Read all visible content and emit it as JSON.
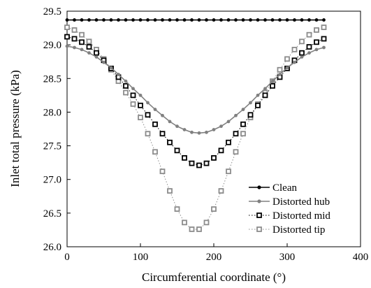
{
  "chart_data": {
    "type": "line",
    "xlabel": "Circumferential coordinate (°)",
    "ylabel": "Inlet total pressure (kPa)",
    "xlim": [
      0,
      400
    ],
    "ylim": [
      26.0,
      29.5
    ],
    "x_ticks": [
      "0",
      "100",
      "200",
      "300",
      "400"
    ],
    "y_ticks": [
      "26.0",
      "26.5",
      "27.0",
      "27.5",
      "28.0",
      "28.5",
      "29.0",
      "29.5"
    ],
    "grid": false,
    "legend_position": "bottom-right",
    "x": [
      0,
      10,
      20,
      30,
      40,
      50,
      60,
      70,
      80,
      90,
      100,
      110,
      120,
      130,
      140,
      150,
      160,
      170,
      180,
      190,
      200,
      210,
      220,
      230,
      240,
      250,
      260,
      270,
      280,
      290,
      300,
      310,
      320,
      330,
      340,
      350
    ],
    "series": [
      {
        "name": "Clean",
        "style": "solid-filled-circle",
        "color": "#000000",
        "values": [
          29.37,
          29.37,
          29.37,
          29.37,
          29.37,
          29.37,
          29.37,
          29.37,
          29.37,
          29.37,
          29.37,
          29.37,
          29.37,
          29.37,
          29.37,
          29.37,
          29.37,
          29.37,
          29.37,
          29.37,
          29.37,
          29.37,
          29.37,
          29.37,
          29.37,
          29.37,
          29.37,
          29.37,
          29.37,
          29.37,
          29.37,
          29.37,
          29.37,
          29.37,
          29.37,
          29.37
        ]
      },
      {
        "name": "Distorted hub",
        "style": "solid-filled-circle",
        "color": "#808080",
        "values": [
          28.98,
          28.96,
          28.93,
          28.88,
          28.82,
          28.74,
          28.66,
          28.56,
          28.46,
          28.35,
          28.25,
          28.14,
          28.04,
          27.95,
          27.86,
          27.79,
          27.74,
          27.7,
          27.69,
          27.7,
          27.74,
          27.79,
          27.86,
          27.95,
          28.04,
          28.14,
          28.25,
          28.35,
          28.46,
          28.56,
          28.66,
          28.74,
          28.82,
          28.88,
          28.93,
          28.96
        ]
      },
      {
        "name": "Distorted mid",
        "style": "dotted-open-square",
        "color": "#000000",
        "values": [
          29.12,
          29.09,
          29.04,
          28.97,
          28.88,
          28.77,
          28.65,
          28.52,
          28.39,
          28.25,
          28.1,
          27.96,
          27.82,
          27.68,
          27.55,
          27.43,
          27.32,
          27.24,
          27.21,
          27.24,
          27.32,
          27.43,
          27.55,
          27.68,
          27.82,
          27.96,
          28.1,
          28.25,
          28.39,
          28.52,
          28.65,
          28.77,
          28.88,
          28.97,
          29.04,
          29.09
        ]
      },
      {
        "name": "Distorted tip",
        "style": "dotted-open-square",
        "color": "#8c8c8c",
        "values": [
          29.26,
          29.22,
          29.15,
          29.05,
          28.93,
          28.79,
          28.63,
          28.46,
          28.29,
          28.12,
          27.92,
          27.68,
          27.41,
          27.12,
          26.83,
          26.56,
          26.36,
          26.26,
          26.26,
          26.36,
          26.56,
          26.83,
          27.12,
          27.41,
          27.68,
          27.92,
          28.12,
          28.29,
          28.46,
          28.63,
          28.79,
          28.93,
          29.05,
          29.15,
          29.22,
          29.26
        ]
      }
    ]
  }
}
